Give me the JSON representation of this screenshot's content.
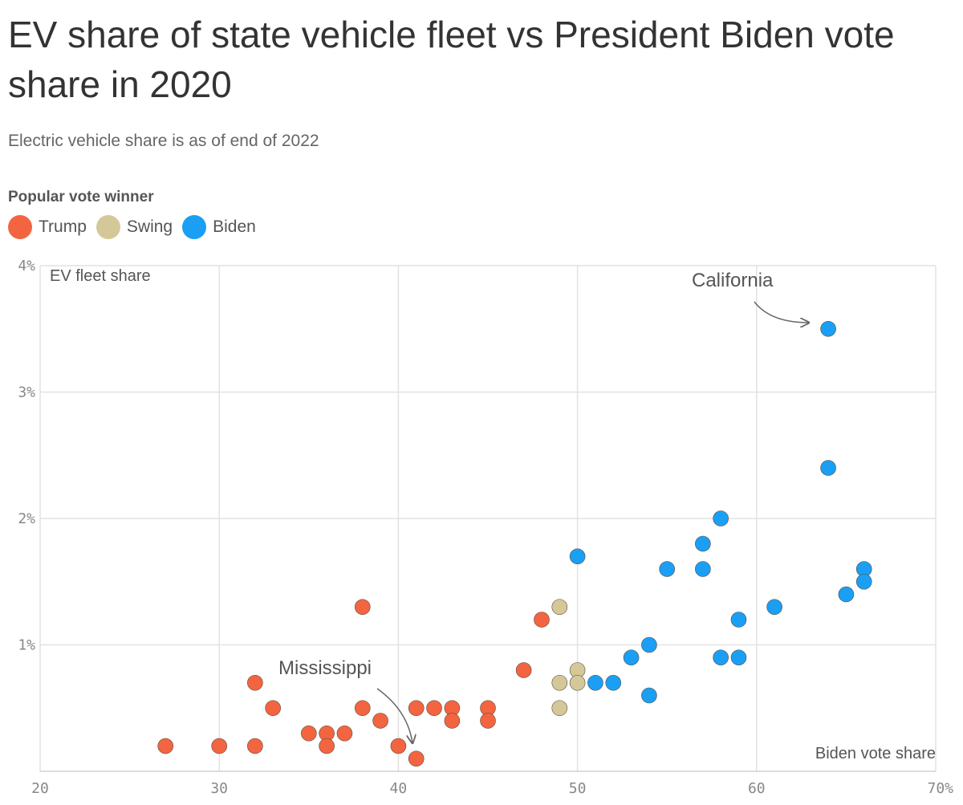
{
  "header": {
    "title": "EV share of state vehicle fleet vs President Biden vote share in 2020",
    "subtitle": "Electric vehicle share is as of end of 2022"
  },
  "legend": {
    "title": "Popular vote winner",
    "items": [
      {
        "label": "Trump",
        "color": "#f26540"
      },
      {
        "label": "Swing",
        "color": "#d4c898"
      },
      {
        "label": "Biden",
        "color": "#1a9ff5"
      }
    ]
  },
  "chart_data": {
    "type": "scatter",
    "title": "EV share of state vehicle fleet vs President Biden vote share in 2020",
    "subtitle": "Electric vehicle share is as of end of 2022",
    "xlabel": "Biden vote share",
    "ylabel": "EV fleet share",
    "xlim": [
      20,
      70
    ],
    "ylim": [
      0,
      4
    ],
    "x_ticks": [
      {
        "value": 20,
        "label": "20"
      },
      {
        "value": 30,
        "label": "30"
      },
      {
        "value": 40,
        "label": "40"
      },
      {
        "value": 50,
        "label": "50"
      },
      {
        "value": 60,
        "label": "60"
      },
      {
        "value": 70,
        "label": "70%"
      }
    ],
    "y_ticks": [
      {
        "value": 1,
        "label": "1%"
      },
      {
        "value": 2,
        "label": "2%"
      },
      {
        "value": 3,
        "label": "3%"
      },
      {
        "value": 4,
        "label": "4%"
      }
    ],
    "grid": true,
    "legend_position": "top-left",
    "series": [
      {
        "name": "Trump",
        "color": "#f26540",
        "points": [
          [
            27,
            0.2
          ],
          [
            30,
            0.2
          ],
          [
            32,
            0.2
          ],
          [
            32,
            0.7
          ],
          [
            33,
            0.5
          ],
          [
            35,
            0.3
          ],
          [
            36,
            0.3
          ],
          [
            36,
            0.2
          ],
          [
            37,
            0.3
          ],
          [
            38,
            0.5
          ],
          [
            38,
            1.3
          ],
          [
            39,
            0.4
          ],
          [
            40,
            0.2
          ],
          [
            41,
            0.1
          ],
          [
            41,
            0.5
          ],
          [
            42,
            0.5
          ],
          [
            43,
            0.5
          ],
          [
            43,
            0.4
          ],
          [
            45,
            0.5
          ],
          [
            45,
            0.4
          ],
          [
            47,
            0.8
          ],
          [
            48,
            1.2
          ]
        ]
      },
      {
        "name": "Swing",
        "color": "#d4c898",
        "points": [
          [
            49,
            1.3
          ],
          [
            49,
            0.7
          ],
          [
            49,
            0.5
          ],
          [
            50,
            0.8
          ],
          [
            50,
            0.7
          ]
        ]
      },
      {
        "name": "Biden",
        "color": "#1a9ff5",
        "points": [
          [
            50,
            1.7
          ],
          [
            51,
            0.7
          ],
          [
            52,
            0.7
          ],
          [
            53,
            0.9
          ],
          [
            54,
            1.0
          ],
          [
            54,
            0.6
          ],
          [
            55,
            1.6
          ],
          [
            57,
            1.8
          ],
          [
            57,
            1.6
          ],
          [
            58,
            2.0
          ],
          [
            58,
            0.9
          ],
          [
            59,
            1.2
          ],
          [
            59,
            0.9
          ],
          [
            61,
            1.3
          ],
          [
            64,
            3.5
          ],
          [
            64,
            2.4
          ],
          [
            65,
            1.4
          ],
          [
            66,
            1.6
          ],
          [
            66,
            1.5
          ]
        ]
      }
    ],
    "annotations": [
      {
        "text": "California",
        "x": 64,
        "y": 3.5
      },
      {
        "text": "Mississippi",
        "x": 41,
        "y": 0.1
      }
    ]
  }
}
